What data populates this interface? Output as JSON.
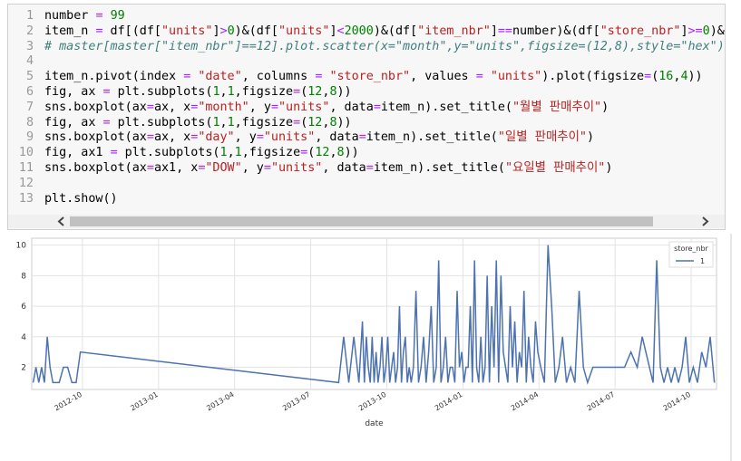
{
  "code_cell": {
    "line_numbers": [
      1,
      2,
      3,
      4,
      5,
      6,
      7,
      8,
      9,
      10,
      11,
      12,
      13
    ],
    "lines": [
      "number = 99",
      "item_n = df[(df[\"units\"]>0)&(df[\"units\"]<2000)&(df[\"item_nbr\"]==number)&(df[\"store_nbr\"]>=0)&(df[\"store_nbr",
      "# master[master[\"item_nbr\"]==12].plot.scatter(x=\"month\",y=\"units\",figsize=(12,8),style=\"hex\")",
      null,
      "item_n.pivot(index = \"date\", columns = \"store_nbr\", values = \"units\").plot(figsize=(16,4))",
      "fig, ax = plt.subplots(1,1,figsize=(12,8))",
      "sns.boxplot(ax=ax, x=\"month\", y=\"units\", data=item_n).set_title(\"월별 판매추이\")",
      "fig, ax = plt.subplots(1,1,figsize=(12,8))",
      "sns.boxplot(ax=ax, x=\"day\", y=\"units\", data=item_n).set_title(\"일별 판매추이\")",
      "fig, ax1 = plt.subplots(1,1,figsize=(12,8))",
      "sns.boxplot(ax=ax1, x=\"DOW\", y=\"units\", data=item_n).set_title(\"요일별 판매추이\")",
      null,
      "plt.show()"
    ]
  },
  "chart_data": {
    "type": "line",
    "x_label": "date",
    "legend_title": "store_nbr",
    "x": [
      "2012-08",
      "2012-08",
      "2012-08",
      "2012-08",
      "2012-08",
      "2012-08",
      "2012-08",
      "2012-08",
      "2012-08",
      "2012-09",
      "2012-09",
      "2012-09",
      "2012-09",
      "2012-09",
      "2012-09",
      "2013-08",
      "2013-08",
      "2013-08",
      "2013-08",
      "2013-08",
      "2013-09",
      "2013-09",
      "2013-09",
      "2013-09",
      "2013-09",
      "2013-09",
      "2013-09",
      "2013-09",
      "2013-09",
      "2013-09",
      "2013-09",
      "2013-09",
      "2013-09",
      "2013-10",
      "2013-10",
      "2013-10",
      "2013-10",
      "2013-10",
      "2013-10",
      "2013-10",
      "2013-10",
      "2013-10",
      "2013-10",
      "2013-10",
      "2013-10",
      "2013-10",
      "2013-11",
      "2013-11",
      "2013-11",
      "2013-11",
      "2013-11",
      "2013-11",
      "2013-11",
      "2013-11",
      "2013-11",
      "2013-11",
      "2013-12",
      "2013-12",
      "2013-12",
      "2013-12",
      "2013-12",
      "2013-12",
      "2013-12",
      "2013-12",
      "2013-12",
      "2013-12",
      "2013-12",
      "2014-01",
      "2014-01",
      "2014-01",
      "2014-01",
      "2014-01",
      "2014-01",
      "2014-01",
      "2014-01",
      "2014-01",
      "2014-01",
      "2014-01",
      "2014-01",
      "2014-02",
      "2014-02",
      "2014-02",
      "2014-02",
      "2014-02",
      "2014-02",
      "2014-02",
      "2014-02",
      "2014-02",
      "2014-02",
      "2014-02",
      "2014-03",
      "2014-03",
      "2014-03",
      "2014-03",
      "2014-03",
      "2014-03",
      "2014-03",
      "2014-03",
      "2014-03",
      "2014-03",
      "2014-03",
      "2014-04",
      "2014-04",
      "2014-04",
      "2014-04",
      "2014-04",
      "2014-04",
      "2014-04",
      "2014-05",
      "2014-05",
      "2014-05",
      "2014-05",
      "2014-05",
      "2014-05",
      "2014-06",
      "2014-06",
      "2014-06",
      "2014-06",
      "2014-07",
      "2014-07",
      "2014-07",
      "2014-07",
      "2014-08",
      "2014-08",
      "2014-08",
      "2014-08",
      "2014-08",
      "2014-08",
      "2014-08",
      "2014-09",
      "2014-09",
      "2014-09",
      "2014-09",
      "2014-09",
      "2014-09",
      "2014-09",
      "2014-10",
      "2014-10",
      "2014-10",
      "2014-10",
      "2014-10",
      "2014-10"
    ],
    "series": [
      {
        "name": "1",
        "color": "#4c72b0",
        "values": [
          1,
          2,
          1,
          2,
          1,
          4,
          2,
          1,
          1,
          1,
          2,
          2,
          1,
          1,
          3,
          1,
          4,
          1,
          4,
          1,
          5,
          1,
          4,
          2,
          1,
          4,
          1,
          3,
          1,
          2,
          4,
          1,
          2,
          4,
          1,
          2,
          3,
          1,
          2,
          6,
          1,
          3,
          4,
          1,
          2,
          1,
          2,
          7,
          1,
          2,
          4,
          1,
          3,
          6,
          1,
          2,
          9,
          1,
          2,
          4,
          1,
          2,
          2,
          1,
          7,
          2,
          3,
          1,
          2,
          2,
          6,
          1,
          9,
          2,
          1,
          4,
          1,
          2,
          8,
          1,
          6,
          2,
          9,
          1,
          8,
          3,
          2,
          1,
          6,
          2,
          5,
          1,
          3,
          2,
          7,
          1,
          4,
          2,
          1,
          5,
          3,
          2,
          1,
          10,
          6,
          1,
          2,
          4,
          1,
          2,
          1,
          7,
          2,
          1,
          2,
          2,
          2,
          2,
          2,
          2,
          3,
          2,
          4,
          3,
          2,
          1,
          9,
          2,
          1,
          2,
          1,
          2,
          1,
          2,
          4,
          1,
          2,
          1,
          3,
          2,
          4,
          1
        ]
      }
    ],
    "xlim": [
      "2012-08",
      "2014-11"
    ],
    "xticks": [
      "2012-10",
      "2013-01",
      "2013-04",
      "2013-07",
      "2013-10",
      "2014-01",
      "2014-04",
      "2014-07",
      "2014-10"
    ],
    "ylim": [
      0.55,
      10.45
    ],
    "yticks": [
      2,
      4,
      6,
      8,
      10
    ],
    "grid": true,
    "legend": "upper right"
  }
}
